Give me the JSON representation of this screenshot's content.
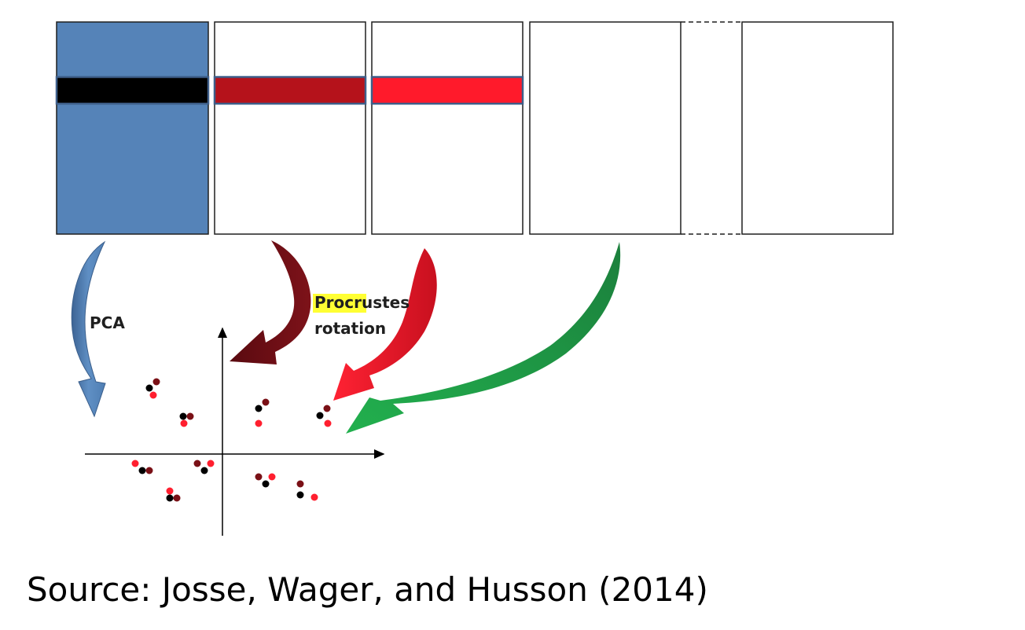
{
  "labels": {
    "pca": "PCA",
    "procrustes_highlight": "Procru",
    "procrustes_rest": "stes",
    "rotation": "rotation"
  },
  "caption": "Source: Josse, Wager, and Husson (2014)",
  "colors": {
    "matrix_blue": "#5583b8",
    "row_black": "#000000",
    "row_dark_red": "#b5121b",
    "row_red": "#ff1a2b",
    "arrow_blue": "#4f7eb3",
    "arrow_dark_red": "#6f0e14",
    "arrow_red": "#ee1c2b",
    "arrow_green": "#1fa048",
    "highlight": "#ffff33",
    "dot_black": "#000000",
    "dot_dark_red": "#7a1016",
    "dot_red": "#ff1f2f"
  }
}
